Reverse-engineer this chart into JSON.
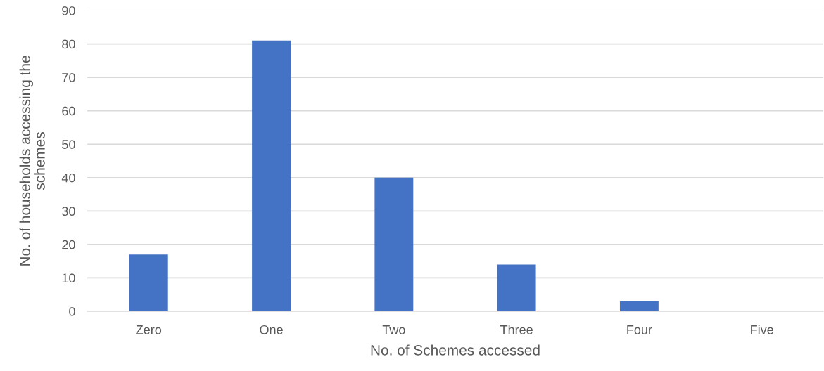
{
  "chart_data": {
    "type": "bar",
    "xlabel": "No. of Schemes accessed",
    "ylabel": "No. of households accessing the\nschemes",
    "categories": [
      "Zero",
      "One",
      "Two",
      "Three",
      "Four",
      "Five"
    ],
    "values": [
      17,
      81,
      40,
      14,
      3,
      0
    ],
    "color": "#4472c4",
    "ylim": [
      0,
      90
    ],
    "yticks": [
      0,
      10,
      20,
      30,
      40,
      50,
      60,
      70,
      80,
      90
    ],
    "grid": "y",
    "legend": false
  }
}
